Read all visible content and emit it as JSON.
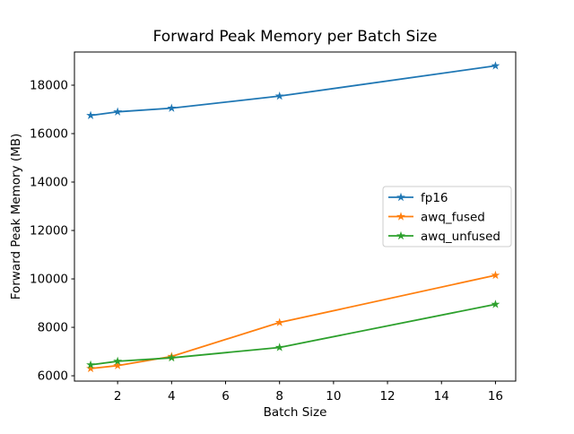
{
  "figure": {
    "background": "#ffffff"
  },
  "chart_data": {
    "type": "line",
    "title": "Forward Peak Memory per Batch Size",
    "xlabel": "Batch Size",
    "ylabel": "Forward Peak Memory (MB)",
    "x": [
      1,
      2,
      4,
      8,
      16
    ],
    "series": [
      {
        "name": "fp16",
        "color": "#1f77b4",
        "marker": "star",
        "values": [
          16750,
          16900,
          17050,
          17550,
          18800
        ]
      },
      {
        "name": "awq_fused",
        "color": "#ff7f0e",
        "marker": "star",
        "values": [
          6300,
          6420,
          6800,
          8200,
          10150
        ]
      },
      {
        "name": "awq_unfused",
        "color": "#2ca02c",
        "marker": "star",
        "values": [
          6450,
          6600,
          6740,
          7170,
          8950
        ]
      }
    ],
    "xlim": [
      0.4,
      16.75
    ],
    "ylim": [
      5780,
      19370
    ],
    "xticks": [
      2,
      4,
      6,
      8,
      10,
      12,
      14,
      16
    ],
    "yticks": [
      6000,
      8000,
      10000,
      12000,
      14000,
      16000,
      18000
    ],
    "grid": false,
    "legend": {
      "position": "center right",
      "border_color": "#cccccc",
      "background": "#ffffff"
    }
  }
}
